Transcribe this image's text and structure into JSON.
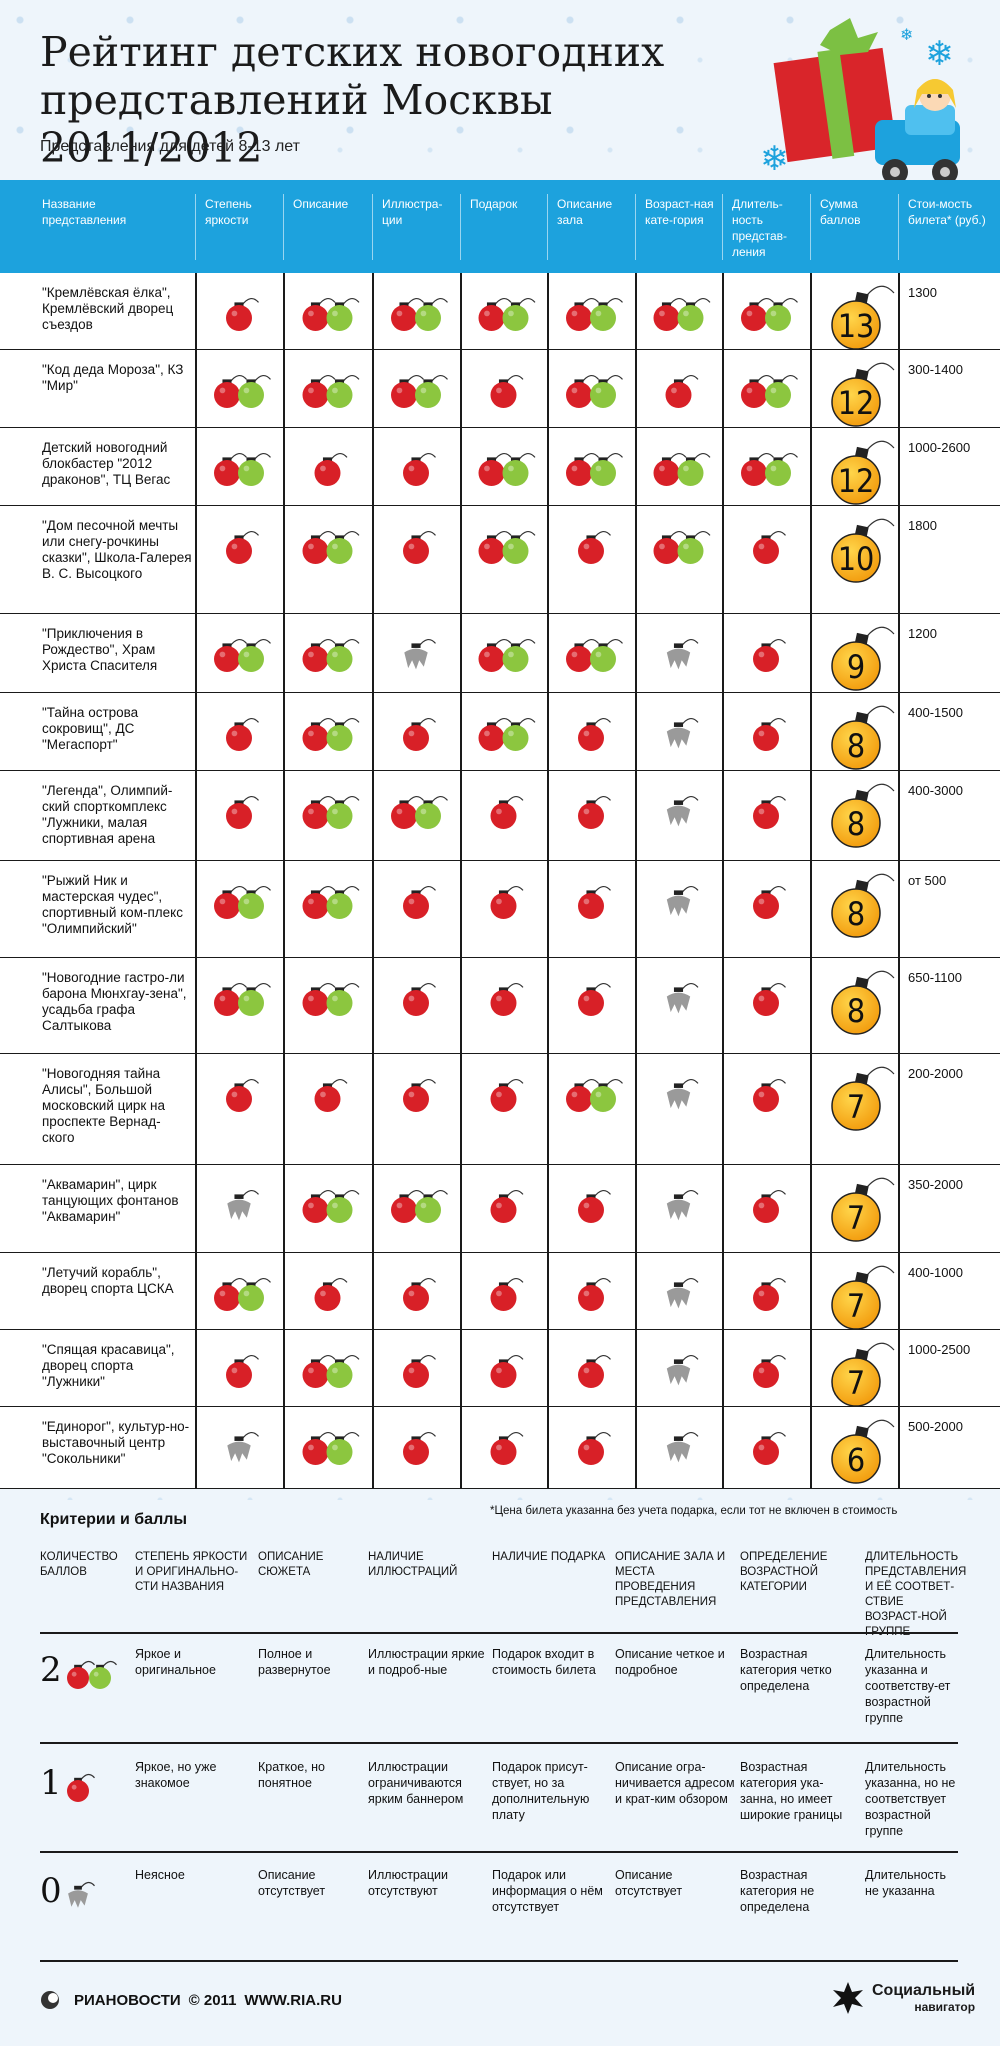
{
  "title_line1": "Рейтинг детских новогодних",
  "title_line2": "представлений Москвы 2011/2012",
  "subtitle": "Представления для детей 8-13 лет",
  "columns": [
    "Название представления",
    "Степень яркости",
    "Описание",
    "Иллюстра-ции",
    "Подарок",
    "Описание зала",
    "Возраст-ная кате-гория",
    "Длитель-ность представ-ления",
    "Сумма баллов",
    "Стои-мость билета* (руб.)"
  ],
  "chart_data": {
    "type": "table",
    "criteria": [
      "Степень яркости",
      "Описание",
      "Иллюстра-ции",
      "Подарок",
      "Описание зала",
      "Возраст-ная кате-гория",
      "Длитель-ность представ-ления"
    ],
    "rows": [
      {
        "name": "\"Кремлёвская ёлка\", Кремлёвский дворец съездов",
        "scores": [
          1,
          2,
          2,
          2,
          2,
          2,
          2
        ],
        "total": "13",
        "price": "1300"
      },
      {
        "name": "\"Код деда Мороза\", КЗ \"Мир\"",
        "scores": [
          2,
          2,
          2,
          1,
          2,
          1,
          2
        ],
        "total": "12",
        "price": "300-1400"
      },
      {
        "name": "Детский новогодний блокбастер \"2012 драконов\", ТЦ Вегас",
        "scores": [
          2,
          1,
          1,
          2,
          2,
          2,
          2
        ],
        "total": "12",
        "price": "1000-2600"
      },
      {
        "name": "\"Дом песочной мечты или снегу-рочкины сказки\", Школа-Галерея В. С. Высоцкого",
        "scores": [
          1,
          2,
          1,
          2,
          1,
          2,
          1
        ],
        "total": "10",
        "price": "1800"
      },
      {
        "name": "\"Приключения в Рождество\", Храм Христа Спасителя",
        "scores": [
          2,
          2,
          0,
          2,
          2,
          0,
          1
        ],
        "total": "9",
        "price": "1200"
      },
      {
        "name": "\"Тайна острова сокровищ\", ДС \"Мегаспорт\"",
        "scores": [
          1,
          2,
          1,
          2,
          1,
          0,
          1
        ],
        "total": "8",
        "price": "400-1500"
      },
      {
        "name": "\"Легенда\", Олимпий-ский спорткомплекс \"Лужники, малая спортивная арена",
        "scores": [
          1,
          2,
          2,
          1,
          1,
          0,
          1
        ],
        "total": "8",
        "price": "400-3000"
      },
      {
        "name": "\"Рыжий Ник и мастерская чудес\", спортивный ком-плекс \"Олимпийский\"",
        "scores": [
          2,
          2,
          1,
          1,
          1,
          0,
          1
        ],
        "total": "8",
        "price": "от 500"
      },
      {
        "name": "\"Новогодние гастро-ли барона Мюнхгау-зена\", усадьба графа Салтыкова",
        "scores": [
          2,
          2,
          1,
          1,
          1,
          0,
          1
        ],
        "total": "8",
        "price": "650-1100"
      },
      {
        "name": "\"Новогодняя тайна Алисы\", Большой московский цирк на проспекте Вернад-ского",
        "scores": [
          1,
          1,
          1,
          1,
          2,
          0,
          1
        ],
        "total": "7",
        "price": "200-2000"
      },
      {
        "name": "\"Аквамарин\", цирк танцующих фонтанов \"Аквамарин\"",
        "scores": [
          0,
          2,
          2,
          1,
          1,
          0,
          1
        ],
        "total": "7",
        "price": "350-2000"
      },
      {
        "name": "\"Летучий корабль\", дворец спорта ЦСКА",
        "scores": [
          2,
          1,
          1,
          1,
          1,
          0,
          1
        ],
        "total": "7",
        "price": "400-1000"
      },
      {
        "name": "\"Спящая красавица\", дворец спорта \"Лужники\"",
        "scores": [
          1,
          2,
          1,
          1,
          1,
          0,
          1
        ],
        "total": "7",
        "price": "1000-2500"
      },
      {
        "name": "\"Единорог\", культур-но-выставочный центр \"Сокольники\"",
        "scores": [
          0,
          2,
          1,
          1,
          1,
          0,
          1
        ],
        "total": "6",
        "price": "500-2000"
      }
    ]
  },
  "criteria_title": "Критерии и баллы",
  "price_note": "*Цена билета указанна без учета подарка, если тот не включен в стоимость",
  "criteria_heads": [
    "КОЛИЧЕСТВО БАЛЛОВ",
    "СТЕПЕНЬ ЯРКОСТИ И ОРИГИНАЛЬНО-СТИ НАЗВАНИЯ",
    "ОПИСАНИЕ СЮЖЕТА",
    "НАЛИЧИЕ ИЛЛЮСТРАЦИЙ",
    "НАЛИЧИЕ ПОДАРКА",
    "ОПИСАНИЕ ЗАЛА И МЕСТА ПРОВЕДЕНИЯ ПРЕДСТАВЛЕНИЯ",
    "ОПРЕДЕЛЕНИЕ ВОЗРАСТНОЙ КАТЕГОРИИ",
    "ДЛИТЕЛЬНОСТЬ ПРЕДСТАВЛЕНИЯ И ЕЁ СООТВЕТ-СТВИЕ ВОЗРАСТ-НОЙ ГРУППЕ"
  ],
  "criteria_rows": [
    {
      "points": "2",
      "texts": [
        "Яркое и оригинальное",
        "Полное и развернутое",
        "Иллюстрации яркие и подроб-ные",
        "Подарок входит в стоимость билета",
        "Описание четкое и подробное",
        "Возрастная категория четко определена",
        "Длительность указанна и соответству-ет возрастной группе"
      ]
    },
    {
      "points": "1",
      "texts": [
        "Яркое, но уже знакомое",
        "Краткое, но понятное",
        "Иллюстрации ограничиваются ярким баннером",
        "Подарок присут-ствует, но за дополнительную плату",
        "Описание огра-ничивается адресом и крат-ким обзором",
        "Возрастная категория ука-занна, но имеет широкие границы",
        "Длительность указанна, но не соответствует возрастной группе"
      ]
    },
    {
      "points": "0",
      "texts": [
        "Неясное",
        "Описание отсутствует",
        "Иллюстрации отсутствуют",
        "Подарок или информация о нём отсутствует",
        "Описание отсутствует",
        "Возрастная категория не определена",
        "Длительность не указанна"
      ]
    }
  ],
  "footer_left_brand": "РИАНОВОСТИ",
  "footer_left_copy": "© 2011",
  "footer_left_url": "WWW.RIA.RU",
  "footer_right_line1": "Социальный",
  "footer_right_line2": "навигатор",
  "colors": {
    "header_blue": "#1da2dd",
    "ball_red": "#d82027",
    "ball_green": "#8cc63f",
    "ball_gray": "#9a9a9a",
    "score_yellow": "#f7b514"
  }
}
